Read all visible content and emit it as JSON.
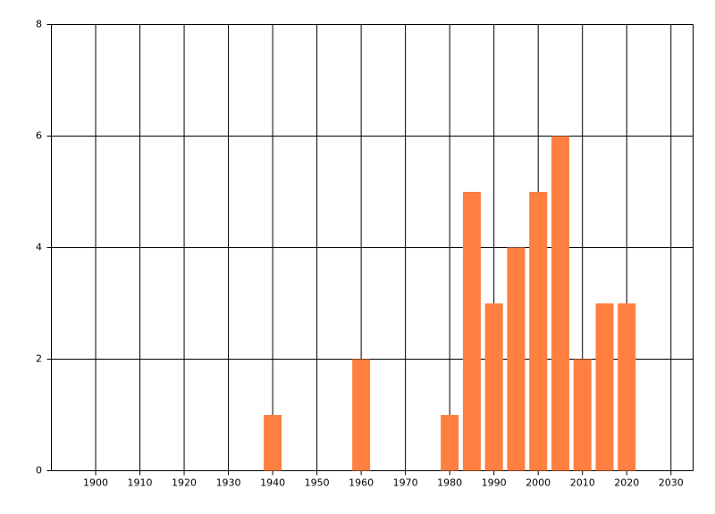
{
  "chart_data": {
    "type": "bar",
    "x": [
      1940,
      1960,
      1980,
      1985,
      1990,
      1995,
      2000,
      2005,
      2010,
      2015,
      2020
    ],
    "values": [
      1,
      2,
      1,
      5,
      3,
      4,
      5,
      6,
      2,
      3,
      3
    ],
    "color": "#ff7f40",
    "xlim": [
      1890,
      2035
    ],
    "xticks": [
      1900,
      1910,
      1920,
      1930,
      1940,
      1950,
      1960,
      1970,
      1980,
      1990,
      2000,
      2010,
      2020,
      2030
    ],
    "ylim": [
      0,
      8
    ],
    "yticks": [
      0,
      2,
      4,
      6,
      8
    ],
    "grid": true
  }
}
